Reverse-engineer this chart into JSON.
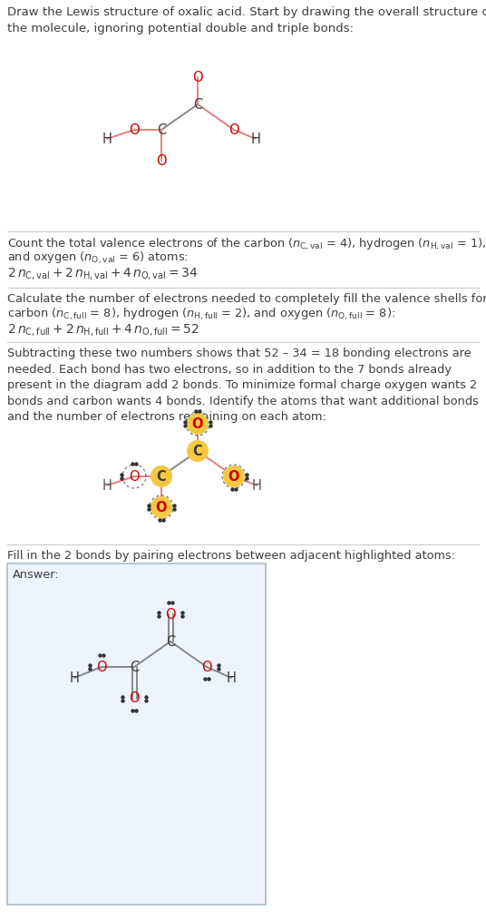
{
  "bg_color": "#ffffff",
  "text_color": "#3d3d3d",
  "atom_O_color": "#cc0000",
  "atom_C_color": "#3d3d3d",
  "atom_H_color": "#555555",
  "bond_color_red": "#e08080",
  "bond_color_gray": "#888888",
  "highlight_yellow": "#f5c842",
  "sep_color": "#cccccc",
  "ans_border": "#aabbcc",
  "ans_bg": "#eef4fa",
  "dot_color": "#333333",
  "s1_title": "Draw the Lewis structure of oxalic acid. Start by drawing the overall structure of\nthe molecule, ignoring potential double and triple bonds:",
  "s2_line1": "Count the total valence electrons of the carbon (",
  "s2_line2": "and oxygen (",
  "s4_text": "Subtracting these two numbers shows that 52 – 34 = 18 bonding electrons are\nneeded. Each bond has two electrons, so in addition to the 7 bonds already\npresent in the diagram add 2 bonds. To minimize formal charge oxygen wants 2\nbonds and carbon wants 4 bonds. Identify the atoms that want additional bonds\nand the number of electrons remaining on each atom:",
  "s5_text": "Fill in the 2 bonds by pairing electrons between adjacent highlighted atoms:",
  "answer_label": "Answer:"
}
